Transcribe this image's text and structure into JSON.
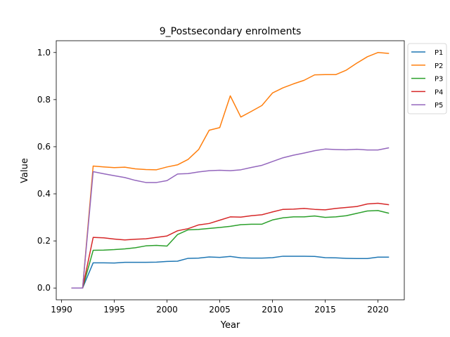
{
  "chart_data": {
    "type": "line",
    "title": "9_Postsecondary enrolments",
    "xlabel": "Year",
    "ylabel": "Value",
    "xlim": [
      1989.5,
      2022.5
    ],
    "ylim": [
      -0.05,
      1.05
    ],
    "xticks": [
      1990,
      1995,
      2000,
      2005,
      2010,
      2015,
      2020
    ],
    "yticks": [
      0.0,
      0.2,
      0.4,
      0.6,
      0.8,
      1.0
    ],
    "xtick_labels": [
      "1990",
      "1995",
      "2000",
      "2005",
      "2010",
      "2015",
      "2020"
    ],
    "ytick_labels": [
      "0.0",
      "0.2",
      "0.4",
      "0.6",
      "0.8",
      "1.0"
    ],
    "grid": false,
    "legend_position": "outside-top-right",
    "x": [
      1991,
      1992,
      1993,
      1994,
      1995,
      1996,
      1997,
      1998,
      1999,
      2000,
      2001,
      2002,
      2003,
      2004,
      2005,
      2006,
      2007,
      2008,
      2009,
      2010,
      2011,
      2012,
      2013,
      2014,
      2015,
      2016,
      2017,
      2018,
      2019,
      2020,
      2021
    ],
    "series": [
      {
        "name": "P1",
        "color": "#1f77b4",
        "values": [
          0.0,
          0.0,
          0.107,
          0.107,
          0.106,
          0.109,
          0.109,
          0.109,
          0.11,
          0.113,
          0.114,
          0.126,
          0.127,
          0.132,
          0.13,
          0.134,
          0.128,
          0.127,
          0.127,
          0.129,
          0.135,
          0.135,
          0.135,
          0.134,
          0.129,
          0.128,
          0.126,
          0.125,
          0.125,
          0.131,
          0.131
        ]
      },
      {
        "name": "P2",
        "color": "#ff7f0e",
        "values": [
          0.0,
          0.0,
          0.518,
          0.514,
          0.511,
          0.513,
          0.506,
          0.503,
          0.502,
          0.514,
          0.523,
          0.546,
          0.588,
          0.67,
          0.681,
          0.816,
          0.726,
          0.75,
          0.775,
          0.828,
          0.85,
          0.867,
          0.882,
          0.905,
          0.906,
          0.906,
          0.925,
          0.955,
          0.982,
          1.0,
          0.996
        ]
      },
      {
        "name": "P3",
        "color": "#2ca02c",
        "values": [
          0.0,
          0.0,
          0.16,
          0.161,
          0.163,
          0.166,
          0.171,
          0.179,
          0.181,
          0.178,
          0.227,
          0.247,
          0.249,
          0.253,
          0.257,
          0.262,
          0.269,
          0.271,
          0.271,
          0.289,
          0.298,
          0.302,
          0.302,
          0.306,
          0.3,
          0.302,
          0.307,
          0.317,
          0.327,
          0.329,
          0.318
        ]
      },
      {
        "name": "P4",
        "color": "#d62728",
        "values": [
          0.0,
          0.0,
          0.215,
          0.213,
          0.208,
          0.204,
          0.207,
          0.209,
          0.215,
          0.221,
          0.243,
          0.252,
          0.268,
          0.274,
          0.288,
          0.302,
          0.301,
          0.307,
          0.311,
          0.323,
          0.334,
          0.335,
          0.338,
          0.334,
          0.332,
          0.338,
          0.342,
          0.346,
          0.357,
          0.36,
          0.354
        ]
      },
      {
        "name": "P5",
        "color": "#9467bd",
        "values": [
          0.0,
          0.0,
          0.494,
          0.485,
          0.477,
          0.469,
          0.457,
          0.448,
          0.448,
          0.456,
          0.484,
          0.486,
          0.493,
          0.498,
          0.5,
          0.498,
          0.502,
          0.512,
          0.521,
          0.537,
          0.553,
          0.564,
          0.573,
          0.583,
          0.59,
          0.588,
          0.587,
          0.589,
          0.586,
          0.586,
          0.595
        ]
      }
    ]
  }
}
